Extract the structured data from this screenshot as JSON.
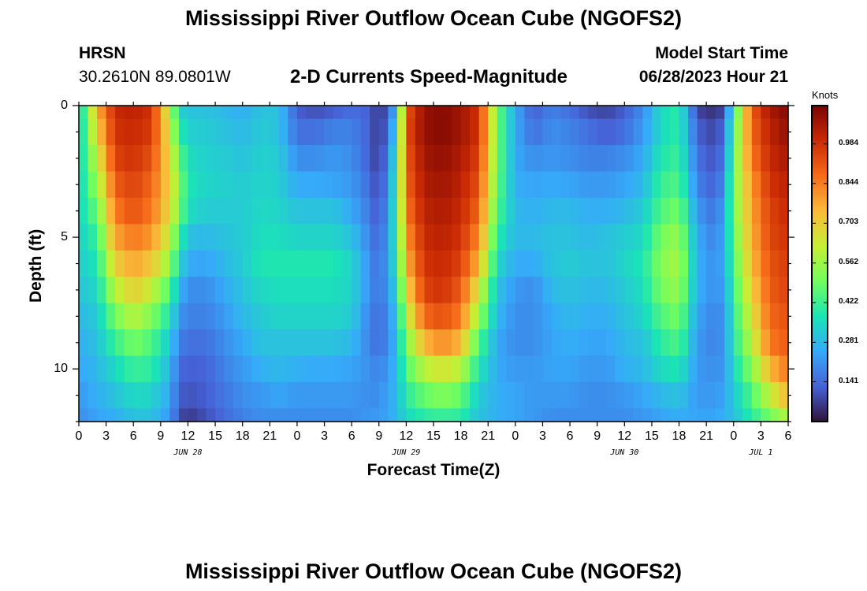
{
  "header": {
    "title": "Mississippi River Outflow Ocean Cube (NGOFS2)",
    "station_name": "HRSN",
    "station_coords": "30.2610N  89.0801W",
    "subtitle": "2-D Currents Speed-Magnitude",
    "model_start_label": "Model Start Time",
    "model_start_value": "06/28/2023 Hour 21"
  },
  "footer": {
    "title": "Mississippi River Outflow Ocean Cube (NGOFS2)"
  },
  "chart_data": {
    "type": "heatmap",
    "title": "2-D Currents Speed-Magnitude",
    "xlabel": "Forecast Time(Z)",
    "ylabel": "Depth (ft)",
    "units": "Knots",
    "x_hours_range": [
      0,
      78
    ],
    "ylim": [
      0,
      12
    ],
    "y_ticks": [
      "0",
      "5",
      "10"
    ],
    "x_tick_labels": [
      "0",
      "3",
      "6",
      "9",
      "12",
      "15",
      "18",
      "21",
      "0",
      "3",
      "6",
      "9",
      "12",
      "15",
      "18",
      "21",
      "0",
      "3",
      "6",
      "9",
      "12",
      "15",
      "18",
      "21",
      "0",
      "3",
      "6"
    ],
    "date_labels": [
      {
        "label": "JUN 28",
        "hour": 12
      },
      {
        "label": "JUN 29",
        "hour": 36
      },
      {
        "label": "JUN 30",
        "hour": 60
      },
      {
        "label": "JUL 1",
        "hour": 75
      }
    ],
    "colorbar": {
      "min": 0,
      "max": 1.12,
      "ticks": [
        "0.141",
        "0.281",
        "0.422",
        "0.562",
        "0.703",
        "0.844",
        "0.984"
      ],
      "tick_values": [
        0.141,
        0.281,
        0.422,
        0.562,
        0.703,
        0.844,
        0.984
      ],
      "colormap": [
        "#30123b",
        "#4662d7",
        "#36aaf9",
        "#1ae4b6",
        "#72fe5e",
        "#c7ef34",
        "#faba39",
        "#f66b19",
        "#ca2a04",
        "#7a0403"
      ]
    },
    "x_hours": [
      0,
      2,
      4,
      6,
      8,
      10,
      11,
      12,
      14,
      16,
      18,
      20,
      22,
      24,
      26,
      28,
      30,
      32,
      33,
      34,
      35,
      36,
      38,
      40,
      42,
      44,
      46,
      48,
      50,
      52,
      54,
      56,
      58,
      60,
      62,
      64,
      66,
      68,
      70,
      71,
      72,
      74,
      76,
      78
    ],
    "depth_levels_ft": [
      0,
      1,
      2,
      3,
      4,
      5,
      6,
      7,
      8,
      9,
      10,
      11,
      12
    ],
    "speed_knots": [
      [
        0.3,
        0.75,
        1.0,
        1.02,
        0.98,
        0.6,
        0.35,
        0.3,
        0.3,
        0.28,
        0.26,
        0.3,
        0.3,
        0.12,
        0.1,
        0.12,
        0.15,
        0.12,
        0.05,
        0.12,
        0.3,
        0.9,
        1.08,
        1.1,
        1.06,
        0.98,
        0.5,
        0.25,
        0.12,
        0.18,
        0.15,
        0.1,
        0.08,
        0.12,
        0.2,
        0.35,
        0.4,
        0.08,
        0.05,
        0.1,
        0.4,
        0.9,
        1.05,
        1.1
      ],
      [
        0.3,
        0.7,
        0.98,
        1.0,
        0.96,
        0.65,
        0.4,
        0.33,
        0.32,
        0.3,
        0.28,
        0.32,
        0.3,
        0.15,
        0.15,
        0.18,
        0.18,
        0.12,
        0.05,
        0.15,
        0.35,
        0.92,
        1.08,
        1.1,
        1.06,
        0.98,
        0.5,
        0.25,
        0.15,
        0.2,
        0.18,
        0.15,
        0.12,
        0.15,
        0.22,
        0.35,
        0.4,
        0.12,
        0.08,
        0.15,
        0.45,
        0.88,
        1.02,
        1.08
      ],
      [
        0.32,
        0.62,
        0.95,
        0.98,
        0.92,
        0.68,
        0.48,
        0.36,
        0.33,
        0.32,
        0.3,
        0.33,
        0.32,
        0.2,
        0.2,
        0.22,
        0.2,
        0.12,
        0.06,
        0.18,
        0.4,
        0.9,
        1.06,
        1.08,
        1.04,
        0.95,
        0.5,
        0.25,
        0.2,
        0.22,
        0.2,
        0.18,
        0.18,
        0.2,
        0.25,
        0.38,
        0.42,
        0.15,
        0.1,
        0.18,
        0.48,
        0.85,
        1.0,
        1.05
      ],
      [
        0.33,
        0.55,
        0.9,
        0.95,
        0.88,
        0.7,
        0.52,
        0.38,
        0.34,
        0.33,
        0.32,
        0.34,
        0.33,
        0.25,
        0.25,
        0.24,
        0.22,
        0.14,
        0.08,
        0.2,
        0.42,
        0.88,
        1.04,
        1.06,
        1.02,
        0.92,
        0.48,
        0.26,
        0.24,
        0.25,
        0.24,
        0.22,
        0.22,
        0.24,
        0.28,
        0.42,
        0.45,
        0.18,
        0.12,
        0.22,
        0.5,
        0.8,
        0.98,
        1.02
      ],
      [
        0.34,
        0.48,
        0.85,
        0.92,
        0.85,
        0.68,
        0.5,
        0.36,
        0.32,
        0.32,
        0.32,
        0.35,
        0.34,
        0.3,
        0.3,
        0.3,
        0.25,
        0.16,
        0.1,
        0.22,
        0.42,
        0.85,
        1.02,
        1.04,
        1.0,
        0.88,
        0.45,
        0.28,
        0.26,
        0.28,
        0.28,
        0.26,
        0.26,
        0.28,
        0.32,
        0.45,
        0.5,
        0.22,
        0.15,
        0.25,
        0.5,
        0.78,
        0.95,
        1.0
      ],
      [
        0.33,
        0.42,
        0.78,
        0.85,
        0.8,
        0.62,
        0.42,
        0.3,
        0.28,
        0.3,
        0.32,
        0.36,
        0.36,
        0.34,
        0.34,
        0.34,
        0.3,
        0.18,
        0.12,
        0.24,
        0.4,
        0.8,
        1.0,
        1.02,
        0.98,
        0.82,
        0.4,
        0.28,
        0.28,
        0.3,
        0.3,
        0.28,
        0.3,
        0.32,
        0.35,
        0.5,
        0.55,
        0.25,
        0.18,
        0.26,
        0.48,
        0.76,
        0.94,
        0.98
      ],
      [
        0.32,
        0.38,
        0.7,
        0.78,
        0.72,
        0.55,
        0.35,
        0.25,
        0.24,
        0.28,
        0.32,
        0.38,
        0.38,
        0.38,
        0.38,
        0.38,
        0.34,
        0.2,
        0.14,
        0.24,
        0.38,
        0.75,
        0.98,
        1.0,
        0.95,
        0.75,
        0.35,
        0.25,
        0.25,
        0.3,
        0.32,
        0.3,
        0.3,
        0.34,
        0.38,
        0.52,
        0.58,
        0.26,
        0.2,
        0.26,
        0.45,
        0.74,
        0.92,
        0.96
      ],
      [
        0.3,
        0.35,
        0.6,
        0.7,
        0.62,
        0.45,
        0.28,
        0.2,
        0.2,
        0.25,
        0.3,
        0.35,
        0.36,
        0.36,
        0.36,
        0.36,
        0.34,
        0.2,
        0.15,
        0.22,
        0.34,
        0.68,
        0.95,
        0.98,
        0.9,
        0.65,
        0.3,
        0.22,
        0.2,
        0.28,
        0.3,
        0.28,
        0.28,
        0.32,
        0.36,
        0.5,
        0.55,
        0.26,
        0.2,
        0.24,
        0.42,
        0.7,
        0.9,
        0.95
      ],
      [
        0.28,
        0.32,
        0.5,
        0.6,
        0.52,
        0.38,
        0.22,
        0.18,
        0.18,
        0.22,
        0.28,
        0.32,
        0.34,
        0.34,
        0.34,
        0.34,
        0.32,
        0.18,
        0.14,
        0.2,
        0.3,
        0.6,
        0.88,
        0.92,
        0.85,
        0.55,
        0.28,
        0.2,
        0.2,
        0.25,
        0.28,
        0.26,
        0.26,
        0.3,
        0.34,
        0.45,
        0.5,
        0.24,
        0.18,
        0.22,
        0.4,
        0.65,
        0.88,
        0.92
      ],
      [
        0.26,
        0.3,
        0.42,
        0.5,
        0.45,
        0.32,
        0.18,
        0.15,
        0.15,
        0.2,
        0.25,
        0.3,
        0.3,
        0.3,
        0.3,
        0.3,
        0.28,
        0.18,
        0.14,
        0.2,
        0.28,
        0.52,
        0.75,
        0.82,
        0.75,
        0.45,
        0.25,
        0.2,
        0.2,
        0.24,
        0.26,
        0.24,
        0.24,
        0.28,
        0.3,
        0.4,
        0.45,
        0.22,
        0.18,
        0.22,
        0.38,
        0.6,
        0.85,
        0.9
      ],
      [
        0.24,
        0.28,
        0.35,
        0.42,
        0.4,
        0.28,
        0.14,
        0.12,
        0.13,
        0.18,
        0.22,
        0.26,
        0.28,
        0.26,
        0.25,
        0.25,
        0.24,
        0.2,
        0.18,
        0.22,
        0.28,
        0.45,
        0.6,
        0.65,
        0.6,
        0.38,
        0.25,
        0.22,
        0.22,
        0.24,
        0.24,
        0.22,
        0.22,
        0.26,
        0.28,
        0.35,
        0.38,
        0.22,
        0.2,
        0.22,
        0.35,
        0.52,
        0.75,
        0.85
      ],
      [
        0.22,
        0.26,
        0.3,
        0.35,
        0.34,
        0.25,
        0.12,
        0.1,
        0.12,
        0.16,
        0.2,
        0.22,
        0.24,
        0.22,
        0.22,
        0.22,
        0.22,
        0.2,
        0.2,
        0.24,
        0.28,
        0.4,
        0.48,
        0.52,
        0.48,
        0.32,
        0.26,
        0.24,
        0.22,
        0.22,
        0.22,
        0.2,
        0.2,
        0.22,
        0.24,
        0.28,
        0.3,
        0.22,
        0.22,
        0.24,
        0.32,
        0.45,
        0.62,
        0.75
      ],
      [
        0.2,
        0.24,
        0.26,
        0.3,
        0.3,
        0.22,
        0.1,
        0.06,
        0.1,
        0.14,
        0.18,
        0.2,
        0.2,
        0.2,
        0.2,
        0.2,
        0.2,
        0.22,
        0.22,
        0.24,
        0.28,
        0.35,
        0.4,
        0.42,
        0.4,
        0.3,
        0.26,
        0.24,
        0.22,
        0.2,
        0.2,
        0.2,
        0.2,
        0.2,
        0.22,
        0.24,
        0.26,
        0.24,
        0.24,
        0.26,
        0.3,
        0.4,
        0.5,
        0.6
      ]
    ]
  }
}
